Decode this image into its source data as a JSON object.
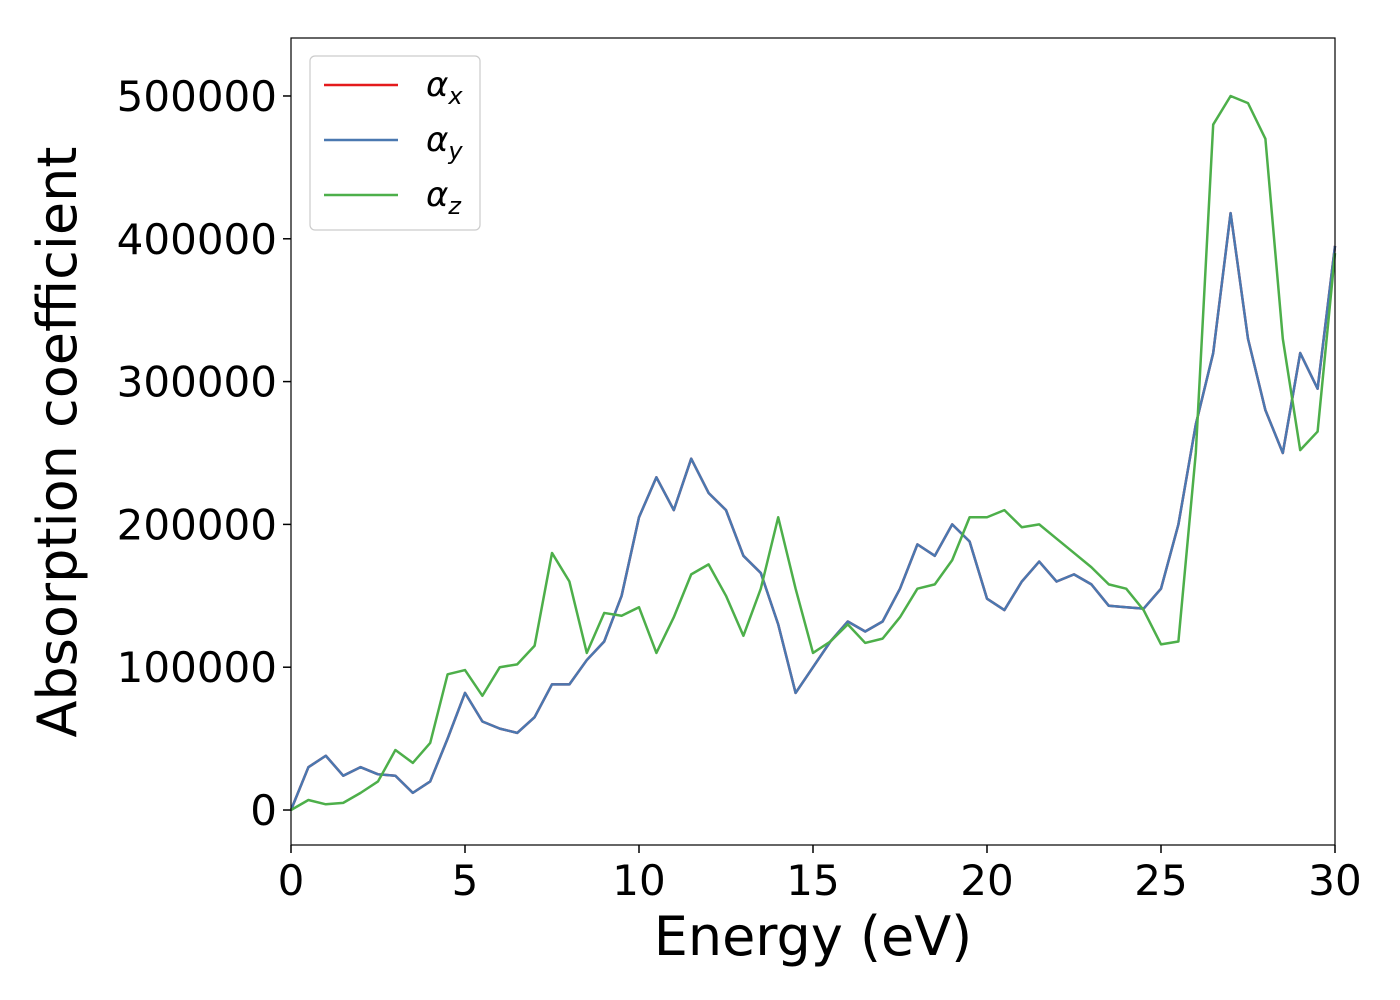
{
  "chart_data": {
    "type": "line",
    "xlabel": "Energy (eV)",
    "ylabel": "Absorption coefficient",
    "x": [
      0,
      0.5,
      1,
      1.5,
      2,
      2.5,
      3,
      3.5,
      4,
      4.5,
      5,
      5.5,
      6,
      6.5,
      7,
      7.5,
      8,
      8.5,
      9,
      9.5,
      10,
      10.5,
      11,
      11.5,
      12,
      12.5,
      13,
      13.5,
      14,
      14.5,
      15,
      15.5,
      16,
      16.5,
      17,
      17.5,
      18,
      18.5,
      19,
      19.5,
      20,
      20.5,
      21,
      21.5,
      22,
      22.5,
      23,
      23.5,
      24,
      24.5,
      25,
      25.5,
      26,
      26.5,
      27,
      27.5,
      28,
      28.5,
      29,
      29.5,
      30
    ],
    "series": [
      {
        "name": "αx",
        "color": "#e41a1c",
        "values": [
          0,
          30000,
          38000,
          24000,
          30000,
          25000,
          24000,
          12000,
          20000,
          50000,
          82000,
          62000,
          57000,
          54000,
          65000,
          88000,
          88000,
          105000,
          118000,
          150000,
          205000,
          233000,
          210000,
          246000,
          222000,
          210000,
          178000,
          166000,
          130000,
          82000,
          100000,
          118000,
          132000,
          125000,
          132000,
          155000,
          186000,
          178000,
          200000,
          188000,
          148000,
          140000,
          160000,
          174000,
          160000,
          165000,
          158000,
          143000,
          142000,
          141000,
          155000,
          200000,
          270000,
          320000,
          418000,
          330000,
          280000,
          250000,
          320000,
          295000,
          395000
        ]
      },
      {
        "name": "αy",
        "color": "#4a78b0",
        "values": [
          0,
          30000,
          38000,
          24000,
          30000,
          25000,
          24000,
          12000,
          20000,
          50000,
          82000,
          62000,
          57000,
          54000,
          65000,
          88000,
          88000,
          105000,
          118000,
          150000,
          205000,
          233000,
          210000,
          246000,
          222000,
          210000,
          178000,
          166000,
          130000,
          82000,
          100000,
          118000,
          132000,
          125000,
          132000,
          155000,
          186000,
          178000,
          200000,
          188000,
          148000,
          140000,
          160000,
          174000,
          160000,
          165000,
          158000,
          143000,
          142000,
          141000,
          155000,
          200000,
          270000,
          320000,
          418000,
          330000,
          280000,
          250000,
          320000,
          295000,
          395000
        ]
      },
      {
        "name": "αz",
        "color": "#4daf4a",
        "values": [
          0,
          7000,
          4000,
          5000,
          12000,
          20000,
          42000,
          33000,
          47000,
          95000,
          98000,
          80000,
          100000,
          102000,
          115000,
          180000,
          160000,
          110000,
          138000,
          136000,
          142000,
          110000,
          135000,
          165000,
          172000,
          150000,
          122000,
          155000,
          205000,
          155000,
          110000,
          118000,
          130000,
          117000,
          120000,
          135000,
          155000,
          158000,
          175000,
          205000,
          205000,
          210000,
          198000,
          200000,
          190000,
          180000,
          170000,
          158000,
          155000,
          140000,
          116000,
          118000,
          250000,
          480000,
          500000,
          495000,
          470000,
          330000,
          252000,
          265000,
          390000
        ]
      }
    ],
    "xlim": [
      0,
      30
    ],
    "ylim": [
      -24500,
      540600
    ],
    "xticks": [
      0,
      5,
      10,
      15,
      20,
      25,
      30
    ],
    "yticks": [
      0,
      100000,
      200000,
      300000,
      400000,
      500000
    ],
    "grid": false,
    "legend": "upper left"
  }
}
